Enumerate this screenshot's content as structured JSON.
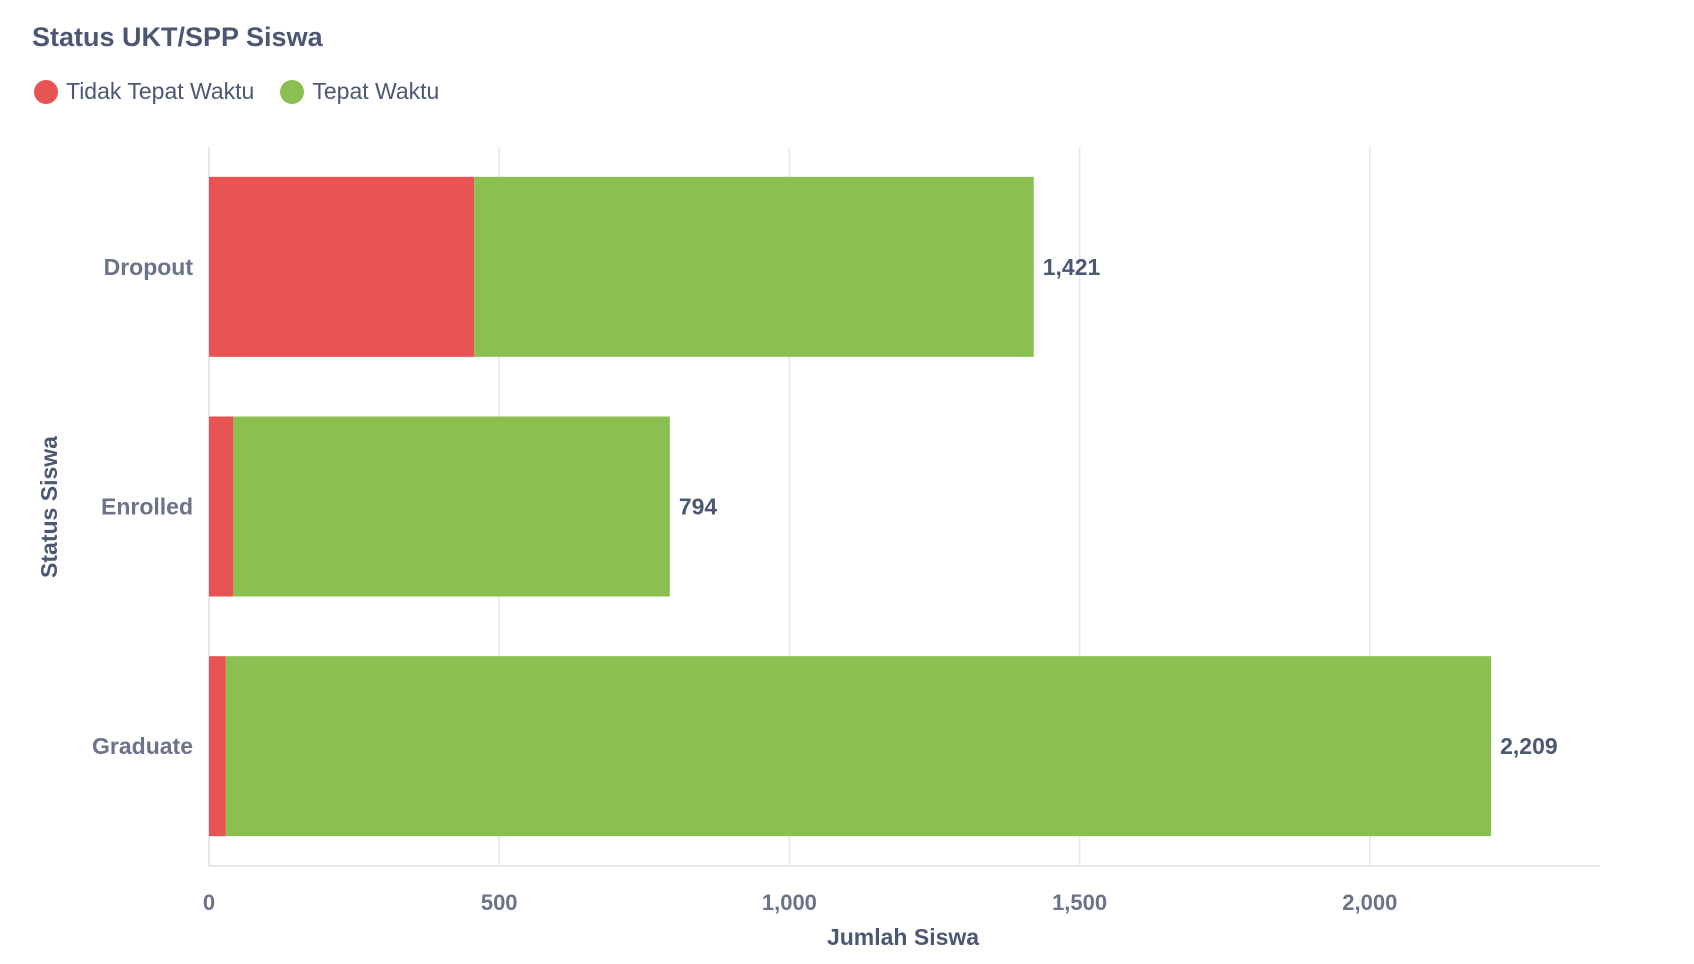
{
  "chart_data": {
    "type": "bar",
    "orientation": "horizontal",
    "stacked": true,
    "title": "Status UKT/SPP Siswa",
    "xlabel": "Jumlah Siswa",
    "ylabel": "Status Siswa",
    "categories": [
      "Dropout",
      "Enrolled",
      "Graduate"
    ],
    "series": [
      {
        "name": "Tidak Tepat Waktu",
        "color": "#e85454",
        "values": [
          457,
          42,
          29
        ]
      },
      {
        "name": "Tepat Waktu",
        "color": "#8bbf4f",
        "values": [
          964,
          752,
          2180
        ]
      }
    ],
    "totals": [
      1421,
      794,
      2209
    ],
    "total_labels": [
      "1,421",
      "794",
      "2,209"
    ],
    "xlim": [
      0,
      2400
    ],
    "xticks": [
      0,
      500,
      1000,
      1500,
      2000
    ],
    "xtick_labels": [
      "0",
      "500",
      "1,000",
      "1,500",
      "2,000"
    ],
    "grid": true,
    "legend_position": "top-left"
  }
}
